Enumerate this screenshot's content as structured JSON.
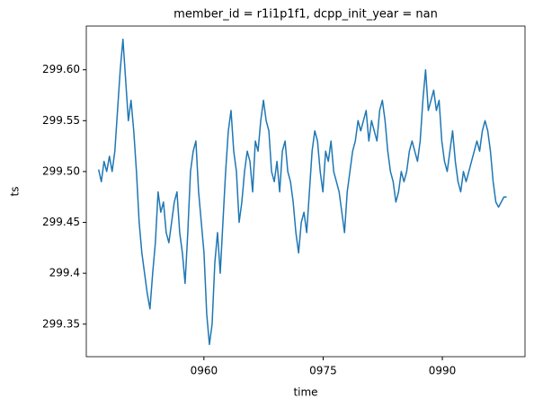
{
  "chart_data": {
    "type": "line",
    "title": "member_id = r1i1p1f1, dcpp_init_year = nan",
    "xlabel": "time",
    "ylabel": "ts",
    "xlim": [
      945.2,
      1000.4
    ],
    "xticks": [
      {
        "value": 960,
        "label": "0960"
      },
      {
        "value": 975,
        "label": "0975"
      },
      {
        "value": 990,
        "label": "0990"
      }
    ],
    "ylim": [
      299.318,
      299.643
    ],
    "yticks": [
      299.35,
      299.4,
      299.45,
      {
        "value": 299.5,
        "label": "299.50"
      },
      299.55,
      {
        "value": 299.6,
        "label": "299.60"
      }
    ],
    "grid": false,
    "series": [
      {
        "name": "ts",
        "color": "#1f77b4",
        "x": [
          946.75,
          947.09,
          947.43,
          947.77,
          948.11,
          948.45,
          948.79,
          949.13,
          949.47,
          949.81,
          950.15,
          950.49,
          950.83,
          951.17,
          951.51,
          951.85,
          952.19,
          952.53,
          952.87,
          953.21,
          953.55,
          953.89,
          954.23,
          954.57,
          954.91,
          955.25,
          955.59,
          955.93,
          956.27,
          956.61,
          956.95,
          957.29,
          957.63,
          957.97,
          958.31,
          958.65,
          958.99,
          959.33,
          959.67,
          960.01,
          960.35,
          960.69,
          961.03,
          961.37,
          961.71,
          962.05,
          962.39,
          962.73,
          963.07,
          963.41,
          963.75,
          964.09,
          964.43,
          964.77,
          965.11,
          965.45,
          965.79,
          966.13,
          966.47,
          966.81,
          967.15,
          967.49,
          967.83,
          968.17,
          968.51,
          968.85,
          969.19,
          969.53,
          969.87,
          970.21,
          970.55,
          970.89,
          971.23,
          971.57,
          971.91,
          972.25,
          972.59,
          972.93,
          973.27,
          973.61,
          973.95,
          974.29,
          974.63,
          974.97,
          975.31,
          975.65,
          975.99,
          976.33,
          976.67,
          977.01,
          977.35,
          977.69,
          978.03,
          978.37,
          978.71,
          979.05,
          979.39,
          979.73,
          980.07,
          980.41,
          980.75,
          981.09,
          981.43,
          981.77,
          982.11,
          982.45,
          982.79,
          983.13,
          983.47,
          983.81,
          984.15,
          984.49,
          984.83,
          985.17,
          985.51,
          985.85,
          986.19,
          986.53,
          986.87,
          987.21,
          987.55,
          987.89,
          988.23,
          988.57,
          988.91,
          989.25,
          989.59,
          989.93,
          990.27,
          990.61,
          990.95,
          991.29,
          991.63,
          991.97,
          992.31,
          992.65,
          992.99,
          993.33,
          993.67,
          994.01,
          994.35,
          994.69,
          995.03,
          995.37,
          995.71,
          996.05,
          996.39,
          996.73,
          997.07,
          997.41,
          997.75,
          998.09
        ],
        "values": [
          299.502,
          299.49,
          299.51,
          299.5,
          299.515,
          299.5,
          299.52,
          299.56,
          299.6,
          299.63,
          299.59,
          299.55,
          299.57,
          299.54,
          299.5,
          299.45,
          299.42,
          299.4,
          299.38,
          299.365,
          299.4,
          299.43,
          299.48,
          299.46,
          299.47,
          299.44,
          299.43,
          299.45,
          299.47,
          299.48,
          299.44,
          299.42,
          299.39,
          299.44,
          299.5,
          299.52,
          299.53,
          299.48,
          299.45,
          299.42,
          299.36,
          299.33,
          299.35,
          299.41,
          299.44,
          299.4,
          299.45,
          299.5,
          299.54,
          299.56,
          299.52,
          299.5,
          299.45,
          299.47,
          299.5,
          299.52,
          299.51,
          299.48,
          299.53,
          299.52,
          299.55,
          299.57,
          299.55,
          299.54,
          299.5,
          299.49,
          299.51,
          299.48,
          299.52,
          299.53,
          299.5,
          299.49,
          299.47,
          299.44,
          299.42,
          299.45,
          299.46,
          299.44,
          299.48,
          299.52,
          299.54,
          299.53,
          299.5,
          299.48,
          299.52,
          299.51,
          299.53,
          299.5,
          299.49,
          299.48,
          299.46,
          299.44,
          299.48,
          299.5,
          299.52,
          299.53,
          299.55,
          299.54,
          299.55,
          299.56,
          299.53,
          299.55,
          299.54,
          299.53,
          299.56,
          299.57,
          299.55,
          299.52,
          299.5,
          299.49,
          299.47,
          299.48,
          299.5,
          299.49,
          299.5,
          299.52,
          299.53,
          299.52,
          299.51,
          299.53,
          299.57,
          299.6,
          299.56,
          299.57,
          299.58,
          299.56,
          299.57,
          299.53,
          299.51,
          299.5,
          299.52,
          299.54,
          299.51,
          299.49,
          299.48,
          299.5,
          299.49,
          299.5,
          299.51,
          299.52,
          299.53,
          299.52,
          299.54,
          299.55,
          299.54,
          299.52,
          299.49,
          299.47,
          299.465,
          299.47,
          299.475,
          299.475
        ]
      }
    ]
  }
}
